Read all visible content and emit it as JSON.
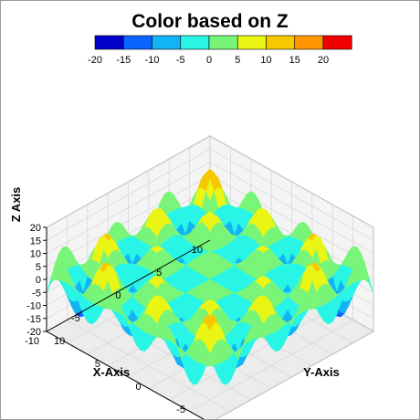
{
  "chart_data": {
    "type": "surface3d",
    "title": "Color based on Z",
    "xlabel": "X-Axis",
    "ylabel": "Y-Axis",
    "zlabel": "Z Axis",
    "x_range": [
      -10,
      10
    ],
    "y_range": [
      -10,
      10
    ],
    "z_range": [
      -20,
      20
    ],
    "x_ticks": [
      "-10",
      "-5",
      "0",
      "5",
      "10"
    ],
    "y_ticks": [
      "-10",
      "-5",
      "0",
      "5",
      "10"
    ],
    "z_ticks": [
      "20",
      "15",
      "10",
      "5",
      "0",
      "-5",
      "-10",
      "-15",
      "-20"
    ],
    "color_scale": {
      "labels": [
        "-20",
        "-15",
        "-10",
        "-5",
        "0",
        "5",
        "10",
        "15",
        "20"
      ],
      "colors": [
        "#0000c8",
        "#0a64ff",
        "#12b4f5",
        "#28f5e6",
        "#78f578",
        "#eaf514",
        "#f5c800",
        "#ff9600",
        "#f00000"
      ]
    },
    "surface_function": "z = 6*sin(x)*sin(y)*(abs(x)+abs(y))/4 approx; peaks near corners up to ~18, center 0",
    "grid": true
  }
}
